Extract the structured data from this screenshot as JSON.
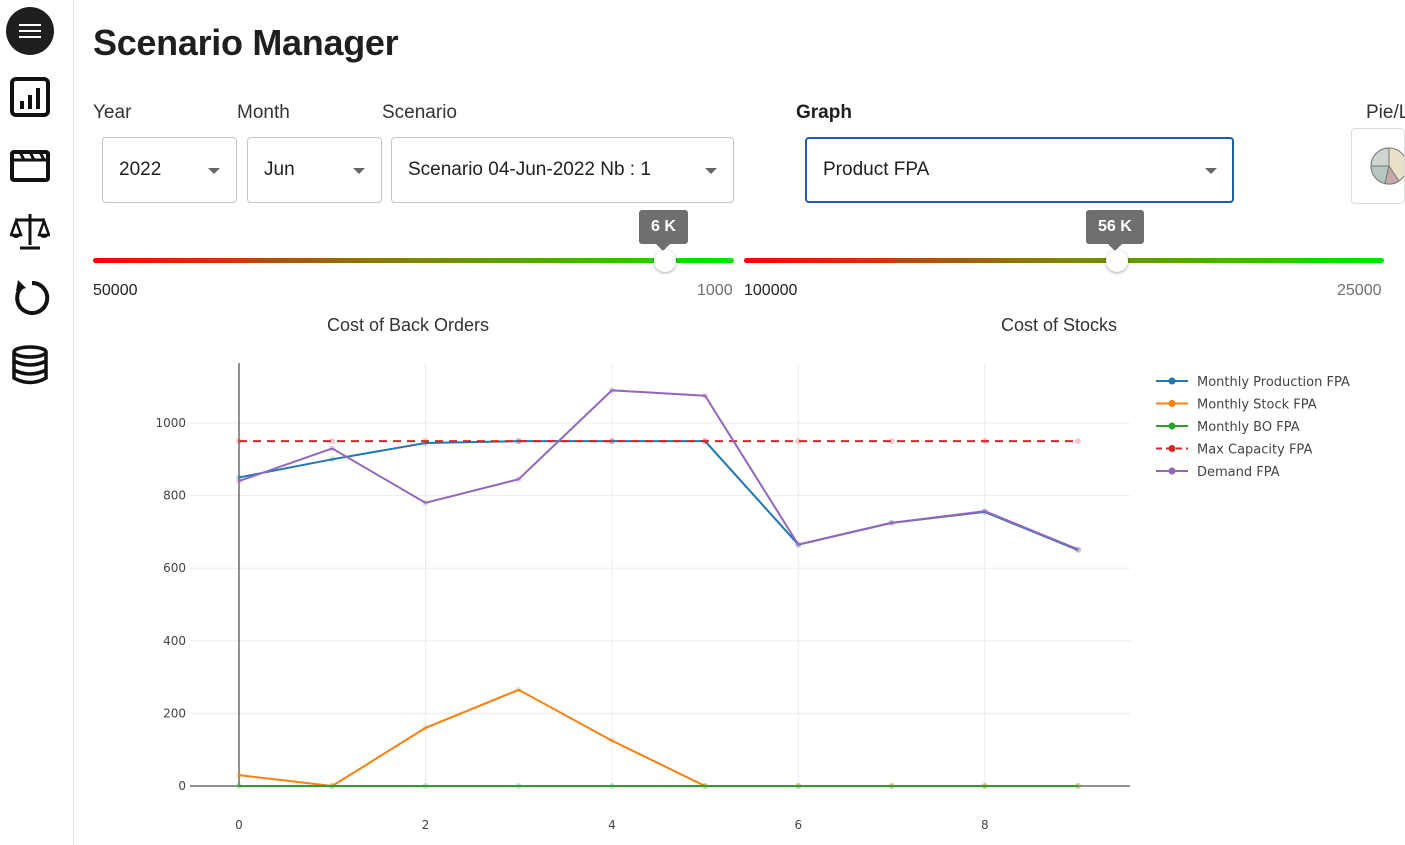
{
  "page": {
    "title": "Scenario Manager"
  },
  "sidebar": {
    "items": [
      {
        "icon": "bar-chart-icon"
      },
      {
        "icon": "clapperboard-icon"
      },
      {
        "icon": "scale-icon"
      },
      {
        "icon": "refresh-icon"
      },
      {
        "icon": "database-icon"
      }
    ]
  },
  "filters": {
    "year": {
      "label": "Year",
      "value": "2022"
    },
    "month": {
      "label": "Month",
      "value": "Jun"
    },
    "scenario": {
      "label": "Scenario",
      "value": "Scenario 04-Jun-2022 Nb : 1"
    },
    "graph": {
      "label": "Graph",
      "value": "Product FPA"
    },
    "pie_toggle": {
      "label": "Pie/L"
    }
  },
  "sliders": {
    "back_orders": {
      "tooltip": "6 K",
      "min": "50000",
      "max": "1000",
      "caption": "Cost of Back Orders",
      "value": 6000
    },
    "stocks": {
      "tooltip": "56 K",
      "min": "100000",
      "max": "25000",
      "caption": "Cost of Stocks",
      "value": 56000
    }
  },
  "colors": {
    "production": "#1f77b4",
    "stock": "#ff7f0e",
    "bo": "#2ca02c",
    "capacity": "#d62728",
    "demand": "#9467bd"
  },
  "chart_data": {
    "type": "line",
    "x": [
      0,
      1,
      2,
      3,
      4,
      5,
      6,
      7,
      8,
      9
    ],
    "xlim": [
      0,
      9
    ],
    "ylim": [
      0,
      1100
    ],
    "x_ticks": [
      0,
      2,
      4,
      6,
      8
    ],
    "y_ticks": [
      0,
      200,
      400,
      600,
      800,
      1000
    ],
    "grid": true,
    "legend": "top-right",
    "series": [
      {
        "name": "Monthly Production FPA",
        "color": "#1f77b4",
        "dash": false,
        "values": [
          850,
          900,
          945,
          950,
          950,
          950,
          665,
          725,
          755,
          650
        ]
      },
      {
        "name": "Monthly Stock FPA",
        "color": "#ff7f0e",
        "dash": false,
        "values": [
          30,
          0,
          160,
          265,
          125,
          0,
          0,
          0,
          0,
          0
        ]
      },
      {
        "name": "Monthly BO FPA",
        "color": "#2ca02c",
        "dash": false,
        "values": [
          0,
          0,
          0,
          0,
          0,
          0,
          0,
          0,
          0,
          0
        ]
      },
      {
        "name": "Max Capacity FPA",
        "color": "#d62728",
        "dash": true,
        "values": [
          950,
          950,
          950,
          950,
          950,
          950,
          950,
          950,
          950,
          950
        ]
      },
      {
        "name": "Demand FPA",
        "color": "#9467bd",
        "dash": false,
        "values": [
          840,
          930,
          780,
          845,
          1090,
          1075,
          665,
          725,
          757,
          652
        ]
      }
    ]
  }
}
